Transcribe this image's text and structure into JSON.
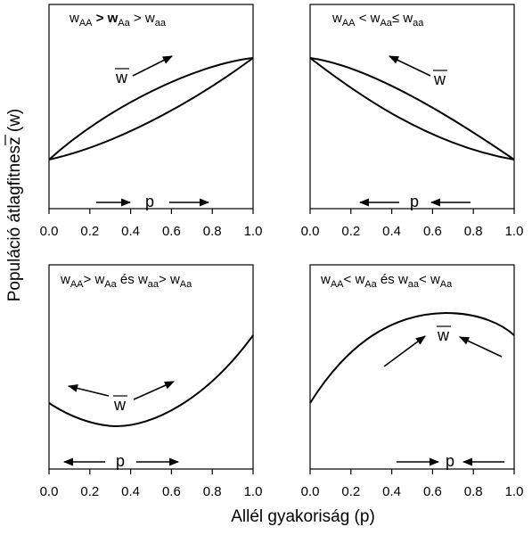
{
  "figure": {
    "ylabel": "Populáció átlagfitnesz (w)",
    "ylabel_symbol": "w",
    "xlabel": "Allél gyakoriság (p)"
  },
  "chart_data": [
    {
      "type": "line",
      "title_parts": [
        "w",
        "AA",
        " > w",
        "Aa",
        " > w",
        "aa"
      ],
      "xlim": [
        0,
        1
      ],
      "x_ticks": [
        "0.0",
        "0.2",
        "0.4",
        "0.6",
        "0.8",
        "1.0"
      ],
      "y_ticks_shown": false,
      "series": [
        {
          "x": [
            0,
            0.25,
            0.5,
            0.75,
            1
          ],
          "y": [
            0.2,
            0.49,
            0.72,
            0.89,
            1.0
          ]
        },
        {
          "x": [
            0,
            0.25,
            0.5,
            0.75,
            1
          ],
          "y": [
            0.2,
            0.32,
            0.47,
            0.69,
            1.0
          ]
        }
      ],
      "annotations": {
        "fitness_symbol": "w",
        "p_symbol": "p",
        "p_direction": "right",
        "w_arrow": "up-right"
      }
    },
    {
      "type": "line",
      "title_parts": [
        "w",
        "AA",
        " < w",
        "Aa",
        "≤ w",
        "aa"
      ],
      "xlim": [
        0,
        1
      ],
      "x_ticks": [
        "0.0",
        "0.2",
        "0.4",
        "0.6",
        "0.8",
        "1.0"
      ],
      "y_ticks_shown": false,
      "series": [
        {
          "x": [
            0,
            0.25,
            0.5,
            0.75,
            1
          ],
          "y": [
            1.0,
            0.93,
            0.78,
            0.52,
            0.2
          ]
        },
        {
          "x": [
            0,
            0.25,
            0.5,
            0.75,
            1
          ],
          "y": [
            1.0,
            0.72,
            0.47,
            0.28,
            0.2
          ]
        }
      ],
      "annotations": {
        "fitness_symbol": "w",
        "p_symbol": "p",
        "p_direction": "left",
        "w_arrow": "up-left"
      }
    },
    {
      "type": "line",
      "title_parts": [
        "w",
        "AA",
        "> w",
        "Aa",
        " és w",
        "aa",
        "> w",
        "Aa"
      ],
      "xlim": [
        0,
        1
      ],
      "x_ticks": [
        "0.0",
        "0.2",
        "0.4",
        "0.6",
        "0.8",
        "1.0"
      ],
      "y_ticks_shown": false,
      "series": [
        {
          "x": [
            0,
            0.1,
            0.2,
            0.333,
            0.5,
            0.6,
            0.7,
            0.8,
            0.9,
            1
          ],
          "y": [
            0.35,
            0.3,
            0.265,
            0.25,
            0.27,
            0.31,
            0.37,
            0.45,
            0.55,
            0.65
          ]
        }
      ],
      "annotations": {
        "fitness_symbol": "w",
        "p_symbol": "p",
        "p_direction": "both-outward",
        "w_arrow": "both-up"
      }
    },
    {
      "type": "line",
      "title_parts": [
        "w",
        "AA",
        "< w",
        "Aa",
        " és w",
        "aa",
        "< w",
        "Aa"
      ],
      "xlim": [
        0,
        1
      ],
      "x_ticks": [
        "0.0",
        "0.2",
        "0.4",
        "0.6",
        "0.8",
        "1.0"
      ],
      "y_ticks_shown": false,
      "series": [
        {
          "x": [
            0,
            0.1,
            0.2,
            0.333,
            0.5,
            0.667,
            0.8,
            0.9,
            1
          ],
          "y": [
            0.35,
            0.47,
            0.56,
            0.65,
            0.72,
            0.74,
            0.72,
            0.68,
            0.62
          ]
        }
      ],
      "annotations": {
        "fitness_symbol": "w",
        "p_symbol": "p",
        "p_direction": "both-inward",
        "w_arrow": "both-up"
      }
    }
  ]
}
